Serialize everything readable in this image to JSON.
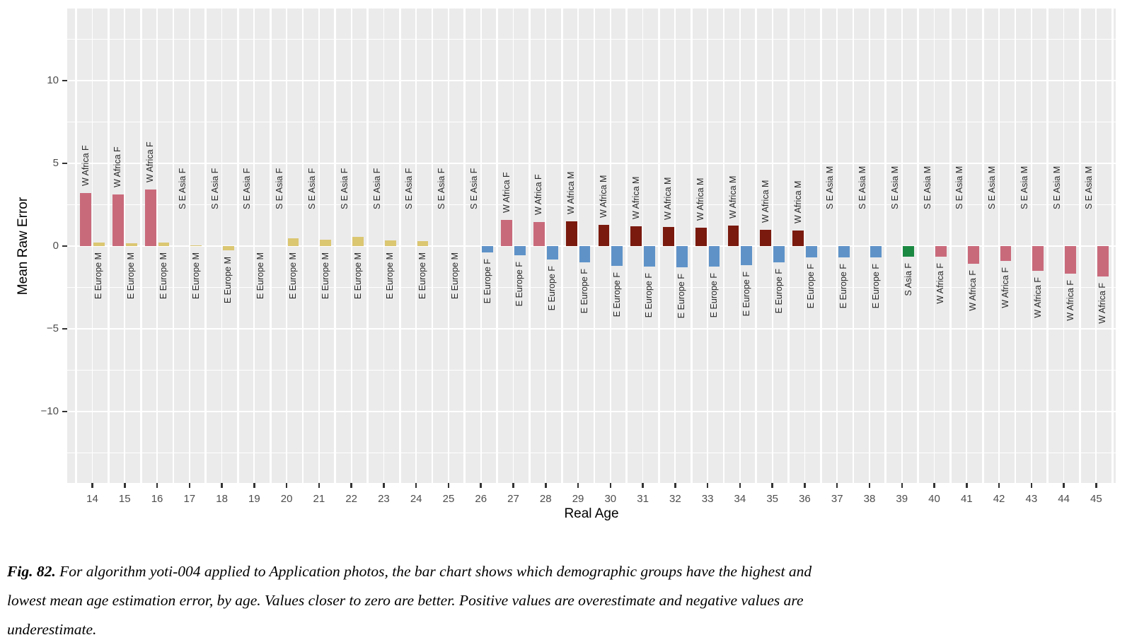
{
  "figure": {
    "caption_label": "Fig. 82.",
    "caption_lines": [
      "For algorithm yoti-004 applied to Application photos, the bar chart shows which demographic groups have the highest and",
      "lowest mean age estimation error, by age. Values closer to zero are better. Positive values are overestimate and negative values are",
      "underestimate."
    ]
  },
  "chart_data": {
    "type": "bar",
    "title": "",
    "xlabel": "Real Age",
    "ylabel": "Mean Raw Error",
    "x_ticks": [
      14,
      15,
      16,
      17,
      18,
      19,
      20,
      21,
      22,
      23,
      24,
      25,
      26,
      27,
      28,
      29,
      30,
      31,
      32,
      33,
      34,
      35,
      36,
      37,
      38,
      39,
      40,
      41,
      42,
      43,
      44,
      45
    ],
    "y_ticks": [
      10,
      5,
      0,
      -5,
      -10
    ],
    "y_minor_gridlines": [
      12.5,
      7.5,
      2.5,
      -2.5,
      -7.5,
      -12.5
    ],
    "ylim": [
      -14.3,
      14.3
    ],
    "grid": true,
    "panel_bg": "#ebebeb",
    "grid_color": "#ffffff",
    "legend": "none",
    "group_colors": {
      "W Africa F": "#C96A7B",
      "W Africa M": "#7A1A0E",
      "E Europe M": "#DBC672",
      "E Europe F": "#5F93C8",
      "S Asia F": "#1C8943",
      "S E Asia F": "none",
      "S E Asia M": "none"
    },
    "bars": [
      {
        "age": 14,
        "max_group": "W Africa F",
        "max": 3.2,
        "min_group": "E Europe M",
        "min": 0.2
      },
      {
        "age": 15,
        "max_group": "W Africa F",
        "max": 3.1,
        "min_group": "E Europe M",
        "min": 0.15
      },
      {
        "age": 16,
        "max_group": "W Africa F",
        "max": 3.4,
        "min_group": "E Europe M",
        "min": 0.2
      },
      {
        "age": 17,
        "max_group": "S E Asia F",
        "max": 0,
        "min_group": "E Europe M",
        "min": 0.05
      },
      {
        "age": 18,
        "max_group": "S E Asia F",
        "max": 0,
        "min_group": "E Europe M",
        "min": -0.25
      },
      {
        "age": 19,
        "max_group": "S E Asia F",
        "max": 0,
        "min_group": "E Europe M",
        "min": 0
      },
      {
        "age": 20,
        "max_group": "S E Asia F",
        "max": 0,
        "min_group": "E Europe M",
        "min": 0.45
      },
      {
        "age": 21,
        "max_group": "S E Asia F",
        "max": 0,
        "min_group": "E Europe M",
        "min": 0.4
      },
      {
        "age": 22,
        "max_group": "S E Asia F",
        "max": 0,
        "min_group": "E Europe M",
        "min": 0.55
      },
      {
        "age": 23,
        "max_group": "S E Asia F",
        "max": 0,
        "min_group": "E Europe M",
        "min": 0.35
      },
      {
        "age": 24,
        "max_group": "S E Asia F",
        "max": 0,
        "min_group": "E Europe M",
        "min": 0.3
      },
      {
        "age": 25,
        "max_group": "S E Asia F",
        "max": 0,
        "min_group": "E Europe M",
        "min": 0
      },
      {
        "age": 26,
        "max_group": "S E Asia F",
        "max": 0,
        "min_group": "E Europe F",
        "min": -0.4
      },
      {
        "age": 27,
        "max_group": "W Africa F",
        "max": 1.6,
        "min_group": "E Europe F",
        "min": -0.55
      },
      {
        "age": 28,
        "max_group": "W Africa F",
        "max": 1.45,
        "min_group": "E Europe F",
        "min": -0.8
      },
      {
        "age": 29,
        "max_group": "W Africa M",
        "max": 1.5,
        "min_group": "E Europe F",
        "min": -1.0
      },
      {
        "age": 30,
        "max_group": "W Africa M",
        "max": 1.3,
        "min_group": "E Europe F",
        "min": -1.2
      },
      {
        "age": 31,
        "max_group": "W Africa M",
        "max": 1.2,
        "min_group": "E Europe F",
        "min": -1.25
      },
      {
        "age": 32,
        "max_group": "W Africa M",
        "max": 1.15,
        "min_group": "E Europe F",
        "min": -1.3
      },
      {
        "age": 33,
        "max_group": "W Africa M",
        "max": 1.1,
        "min_group": "E Europe F",
        "min": -1.25
      },
      {
        "age": 34,
        "max_group": "W Africa M",
        "max": 1.25,
        "min_group": "E Europe F",
        "min": -1.15
      },
      {
        "age": 35,
        "max_group": "W Africa M",
        "max": 1.0,
        "min_group": "E Europe F",
        "min": -1.0
      },
      {
        "age": 36,
        "max_group": "W Africa M",
        "max": 0.95,
        "min_group": "E Europe F",
        "min": -0.7
      },
      {
        "age": 37,
        "max_group": "S E Asia M",
        "max": 0,
        "min_group": "E Europe F",
        "min": -0.7
      },
      {
        "age": 38,
        "max_group": "S E Asia M",
        "max": 0,
        "min_group": "E Europe F",
        "min": -0.7
      },
      {
        "age": 39,
        "max_group": "S E Asia M",
        "max": 0,
        "min_group": "S Asia F",
        "min": -0.65
      },
      {
        "age": 40,
        "max_group": "S E Asia M",
        "max": 0,
        "min_group": "W Africa F",
        "min": -0.65
      },
      {
        "age": 41,
        "max_group": "S E Asia M",
        "max": 0,
        "min_group": "W Africa F",
        "min": -1.05
      },
      {
        "age": 42,
        "max_group": "S E Asia M",
        "max": 0,
        "min_group": "W Africa F",
        "min": -0.9
      },
      {
        "age": 43,
        "max_group": "S E Asia M",
        "max": 0,
        "min_group": "W Africa F",
        "min": -1.5
      },
      {
        "age": 44,
        "max_group": "S E Asia M",
        "max": 0,
        "min_group": "W Africa F",
        "min": -1.65
      },
      {
        "age": 45,
        "max_group": "S E Asia M",
        "max": 0,
        "min_group": "W Africa F",
        "min": -1.85
      }
    ]
  }
}
